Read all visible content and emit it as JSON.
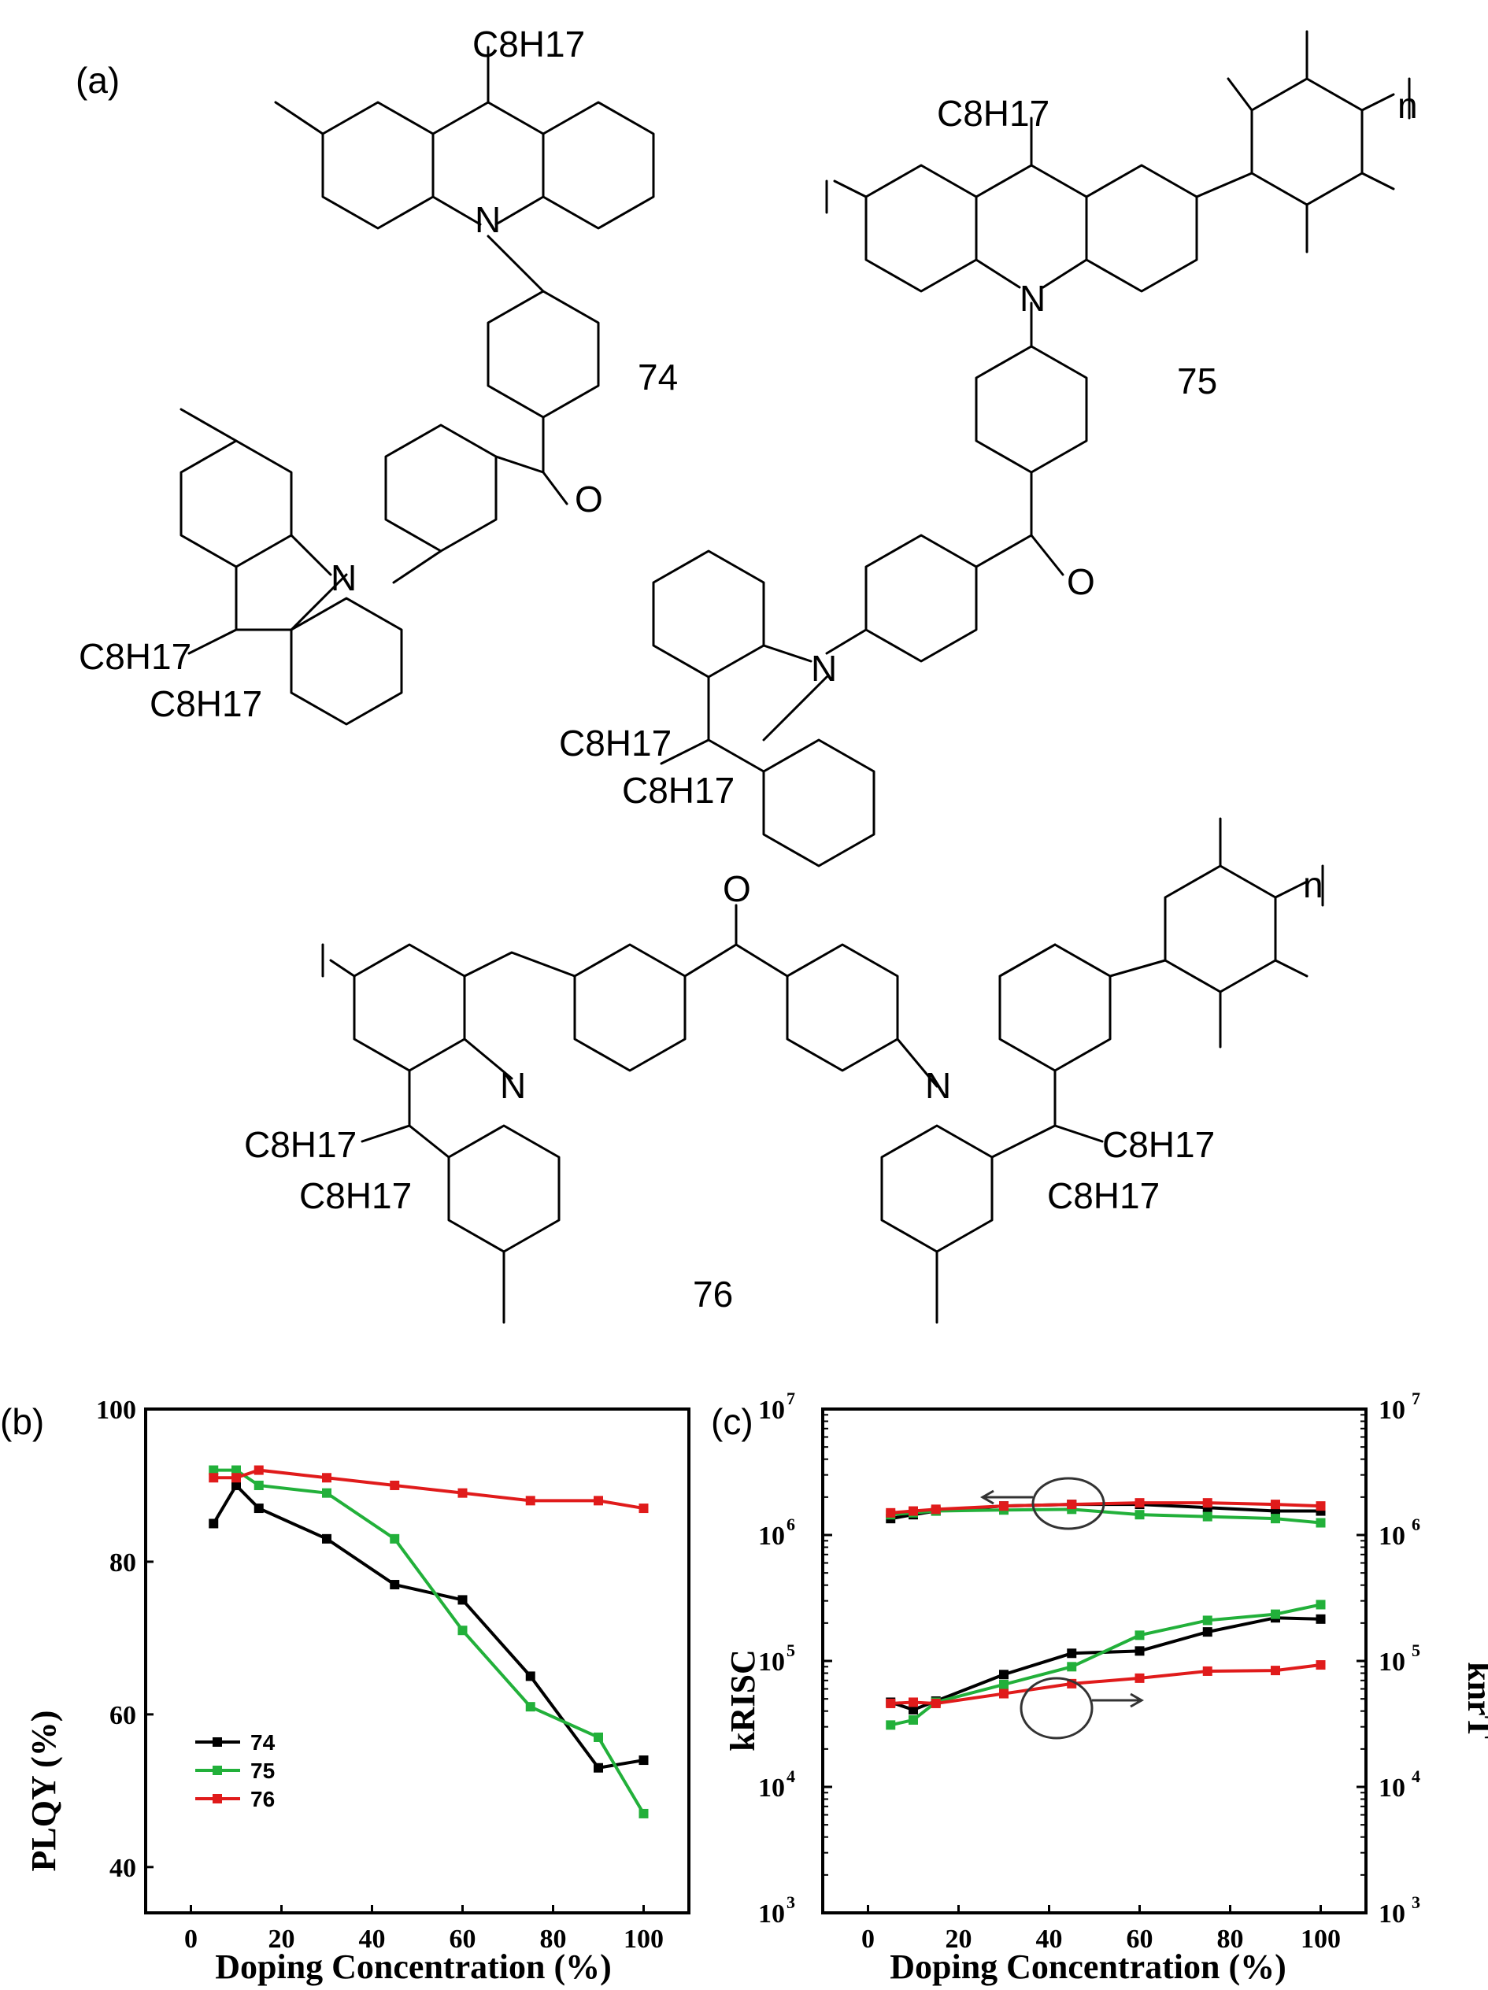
{
  "panels": {
    "a": "(a)",
    "b": "(b)",
    "c": "(c)"
  },
  "structures": {
    "compound_labels": [
      "74",
      "75",
      "76"
    ],
    "substituent": "C8H17",
    "atoms": {
      "nitrogen": "N",
      "oxygen": "O"
    },
    "repeat_index": "n"
  },
  "colors": {
    "74": "#000000",
    "75": "#22b03a",
    "76": "#e01b1b"
  },
  "chart_data": [
    {
      "panel": "(b)",
      "type": "line",
      "xlabel": "Doping Concentration (%)",
      "ylabel": "PLQY (%)",
      "xlim": [
        -10,
        110
      ],
      "ylim": [
        34,
        100
      ],
      "xticks": [
        0,
        20,
        40,
        60,
        80,
        100
      ],
      "yticks": [
        40,
        60,
        80,
        100
      ],
      "legend_position": "lower-left",
      "grid": false,
      "series": [
        {
          "name": "74",
          "x": [
            5,
            10,
            15,
            30,
            45,
            60,
            75,
            90,
            100
          ],
          "y": [
            85,
            90,
            87,
            83,
            77,
            75,
            65,
            53,
            54
          ]
        },
        {
          "name": "75",
          "x": [
            5,
            10,
            15,
            30,
            45,
            60,
            75,
            90,
            100
          ],
          "y": [
            92,
            92,
            90,
            89,
            83,
            71,
            61,
            57,
            47
          ]
        },
        {
          "name": "76",
          "x": [
            5,
            10,
            15,
            30,
            45,
            60,
            75,
            90,
            100
          ],
          "y": [
            91,
            91,
            92,
            91,
            90,
            89,
            88,
            88,
            87
          ]
        }
      ]
    },
    {
      "panel": "(c)",
      "type": "line",
      "xlabel": "Doping Concentration (%)",
      "ylabel_left": "kRISC",
      "ylabel_right": "knrT",
      "xlim": [
        -10,
        110
      ],
      "ylim": [
        1000,
        10000000
      ],
      "yscale": "log",
      "xticks": [
        0,
        20,
        40,
        60,
        80,
        100
      ],
      "ytick_exponents": [
        3,
        4,
        5,
        6,
        7
      ],
      "grid": false,
      "annotations": [
        "circle with left arrow: upper curves read on left axis (kRISC)",
        "circle with right arrow: lower curves read on right axis (knrT)"
      ],
      "series": [
        {
          "name": "74",
          "axis": "left",
          "x": [
            5,
            10,
            15,
            30,
            45,
            60,
            75,
            90,
            100
          ],
          "y": [
            1350000,
            1450000,
            1550000,
            1700000,
            1750000,
            1750000,
            1650000,
            1550000,
            1550000
          ]
        },
        {
          "name": "75",
          "axis": "left",
          "x": [
            5,
            10,
            15,
            30,
            45,
            60,
            75,
            90,
            100
          ],
          "y": [
            1450000,
            1500000,
            1550000,
            1580000,
            1600000,
            1450000,
            1400000,
            1350000,
            1250000
          ]
        },
        {
          "name": "76",
          "axis": "left",
          "x": [
            5,
            10,
            15,
            30,
            45,
            60,
            75,
            90,
            100
          ],
          "y": [
            1500000,
            1550000,
            1600000,
            1700000,
            1750000,
            1800000,
            1800000,
            1750000,
            1700000
          ]
        },
        {
          "name": "74",
          "axis": "right",
          "x": [
            5,
            10,
            15,
            30,
            45,
            60,
            75,
            90,
            100
          ],
          "y": [
            47000,
            41000,
            48000,
            78000,
            115000,
            120000,
            170000,
            220000,
            215000
          ]
        },
        {
          "name": "75",
          "axis": "right",
          "x": [
            5,
            10,
            15,
            30,
            45,
            60,
            75,
            90,
            100
          ],
          "y": [
            31000,
            34000,
            47000,
            65000,
            90000,
            160000,
            210000,
            235000,
            280000
          ]
        },
        {
          "name": "76",
          "axis": "right",
          "x": [
            5,
            10,
            15,
            30,
            45,
            60,
            75,
            90,
            100
          ],
          "y": [
            46000,
            47000,
            46000,
            55000,
            66000,
            73000,
            83000,
            84000,
            93000
          ]
        }
      ]
    }
  ]
}
